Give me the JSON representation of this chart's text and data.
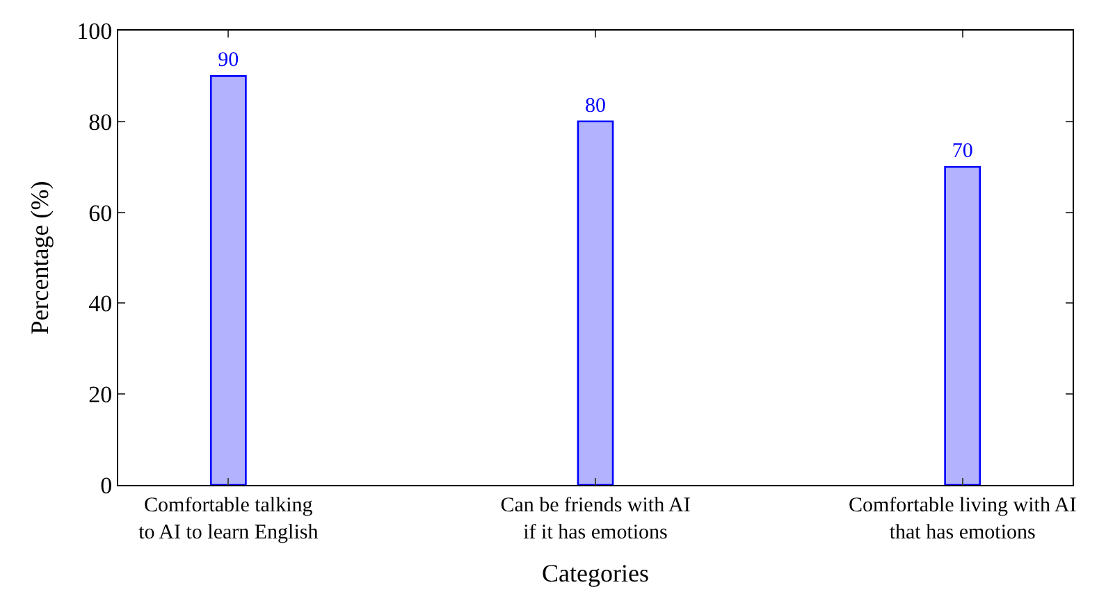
{
  "chart_data": {
    "type": "bar",
    "xlabel": "Categories",
    "ylabel": "Percentage (%)",
    "categories": [
      "Comfortable talking\nto AI to learn English",
      "Can be friends with AI\nif it has emotions",
      "Comfortable living with AI\nthat has emotions"
    ],
    "series": [
      {
        "color": "#0000ff",
        "values": [
          90,
          80,
          70
        ]
      }
    ],
    "ylim": [
      0,
      100
    ],
    "yticks": [
      0,
      20,
      40,
      60,
      80,
      100
    ],
    "legend": false,
    "data_labels": true
  }
}
